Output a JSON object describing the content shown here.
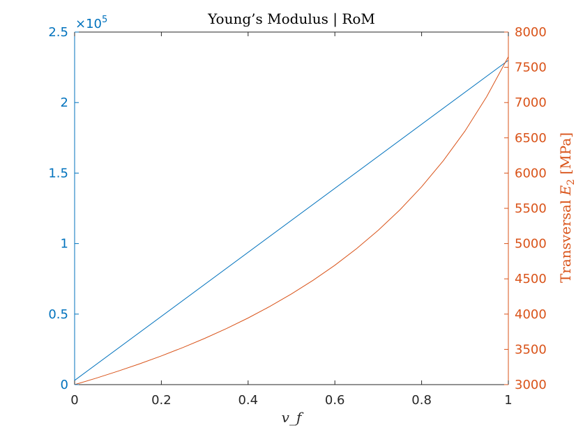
{
  "chart_data": {
    "type": "line",
    "title": "Young’s Modulus | RoM",
    "xlabel": "v_f",
    "xlim": [
      0,
      1
    ],
    "x_ticks": [
      0,
      0.2,
      0.4,
      0.6,
      0.8,
      1
    ],
    "x_tick_labels": [
      "0",
      "0.2",
      "0.4",
      "0.6",
      "0.8",
      "1"
    ],
    "left_axis": {
      "color": "#0072BD",
      "ylim": [
        0,
        250000
      ],
      "exponent_label_base": "×10",
      "exponent_label_power": "5",
      "ticks": [
        0,
        50000,
        100000,
        150000,
        200000,
        250000
      ],
      "tick_labels": [
        "0",
        "0.5",
        "1",
        "1.5",
        "2",
        "2.5"
      ],
      "ylabel": ""
    },
    "right_axis": {
      "color": "#D95319",
      "ylim": [
        3000,
        8000
      ],
      "ticks": [
        3000,
        3500,
        4000,
        4500,
        5000,
        5500,
        6000,
        6500,
        7000,
        7500,
        8000
      ],
      "tick_labels": [
        "3000",
        "3500",
        "4000",
        "4500",
        "5000",
        "5500",
        "6000",
        "6500",
        "7000",
        "7500",
        "8000"
      ],
      "ylabel_prefix": "Transversal ",
      "ylabel_symbol": "E",
      "ylabel_subscript": "2",
      "ylabel_suffix": " [MPa]"
    },
    "series": [
      {
        "axis": "left",
        "color": "#0072BD",
        "x": [
          0,
          1
        ],
        "y": [
          3000,
          230000
        ]
      },
      {
        "axis": "right",
        "color": "#D95319",
        "x": [
          0,
          0.05,
          0.1,
          0.15,
          0.2,
          0.25,
          0.3,
          0.35,
          0.4,
          0.45,
          0.5,
          0.55,
          0.6,
          0.65,
          0.7,
          0.75,
          0.8,
          0.85,
          0.9,
          0.95,
          1
        ],
        "y": [
          3000,
          3092,
          3191,
          3295,
          3407,
          3527,
          3656,
          3795,
          3945,
          4108,
          4286,
          4480,
          4693,
          4928,
          5189,
          5479,
          5806,
          6175,
          6596,
          7083,
          7650
        ]
      }
    ],
    "grid": false,
    "legend": "none"
  }
}
